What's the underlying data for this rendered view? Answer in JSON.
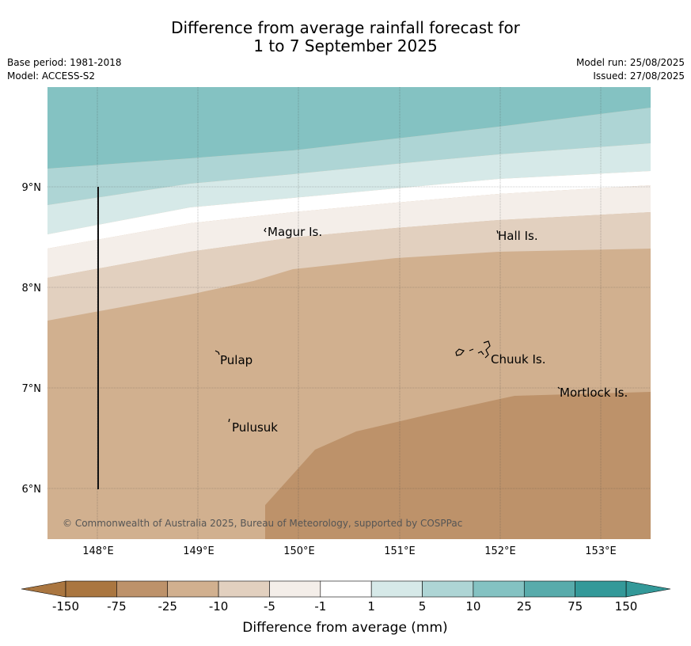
{
  "title_line1": "Difference from average rainfall forecast for",
  "title_line2": "1 to 7 September 2025",
  "base_period": "Base period: 1981-2018",
  "model": "Model: ACCESS-S2",
  "model_run": "Model run: 25/08/2025",
  "issued": "Issued: 27/08/2025",
  "map": {
    "lon_labels": [
      "148°E",
      "149°E",
      "150°E",
      "151°E",
      "152°E",
      "153°E"
    ],
    "lat_labels": [
      "9°N",
      "8°N",
      "7°N",
      "6°N"
    ],
    "places": [
      "Magur Is.",
      "Hall Is.",
      "Pulap",
      "Chuuk Is.",
      "Mortlock Is.",
      "Pulusuk"
    ],
    "copyright": "© Commonwealth of Australia 2025, Bureau of Meteorology, supported by COSPPac"
  },
  "colorbar": {
    "ticks": [
      "-150",
      "-75",
      "-25",
      "-10",
      "-5",
      "-1",
      "1",
      "5",
      "10",
      "25",
      "75",
      "150"
    ],
    "colors": [
      "#aa7640",
      "#bd926a",
      "#d1b08f",
      "#e2d0bf",
      "#f4eee9",
      "#ffffff",
      "#d6e9e8",
      "#aed5d5",
      "#84c2c2",
      "#58abab",
      "#339999"
    ],
    "label": "Difference from average (mm)"
  }
}
